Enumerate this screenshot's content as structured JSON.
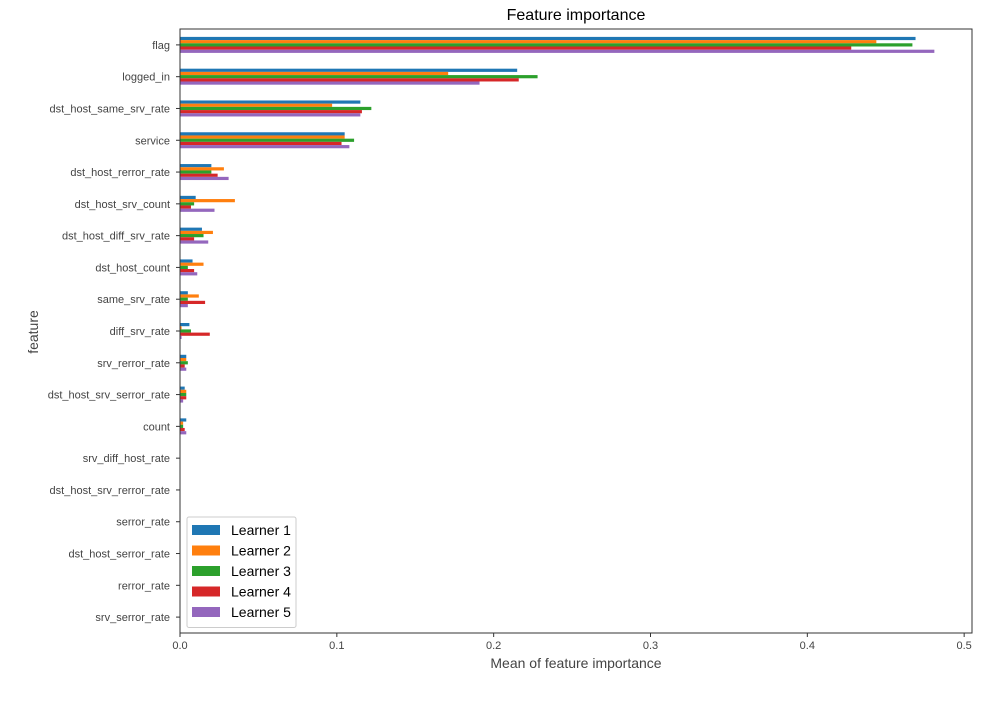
{
  "chart_data": {
    "type": "bar",
    "orientation": "horizontal",
    "title": "Feature importance",
    "xlabel": "Mean of feature importance",
    "ylabel": "feature",
    "xlim": [
      0,
      0.505
    ],
    "xticks": [
      "0.0",
      "0.1",
      "0.2",
      "0.3",
      "0.4",
      "0.5"
    ],
    "grid": false,
    "legend_position": "lower-left",
    "categories": [
      "flag",
      "logged_in",
      "dst_host_same_srv_rate",
      "service",
      "dst_host_rerror_rate",
      "dst_host_srv_count",
      "dst_host_diff_srv_rate",
      "dst_host_count",
      "same_srv_rate",
      "diff_srv_rate",
      "srv_rerror_rate",
      "dst_host_srv_serror_rate",
      "count",
      "srv_diff_host_rate",
      "dst_host_srv_rerror_rate",
      "serror_rate",
      "dst_host_serror_rate",
      "rerror_rate",
      "srv_serror_rate"
    ],
    "series": [
      {
        "name": "Learner 1",
        "color": "#1f77b4",
        "values": [
          0.469,
          0.215,
          0.115,
          0.105,
          0.02,
          0.01,
          0.014,
          0.008,
          0.005,
          0.006,
          0.004,
          0.003,
          0.004,
          0,
          0,
          0,
          0,
          0,
          0
        ]
      },
      {
        "name": "Learner 2",
        "color": "#ff7f0e",
        "values": [
          0.444,
          0.171,
          0.097,
          0.105,
          0.028,
          0.035,
          0.021,
          0.015,
          0.012,
          0.001,
          0.004,
          0.004,
          0.002,
          0,
          0,
          0,
          0,
          0,
          0
        ]
      },
      {
        "name": "Learner 3",
        "color": "#2ca02c",
        "values": [
          0.467,
          0.228,
          0.122,
          0.111,
          0.02,
          0.009,
          0.015,
          0.005,
          0.005,
          0.007,
          0.005,
          0.004,
          0.002,
          0,
          0,
          0,
          0,
          0,
          0
        ]
      },
      {
        "name": "Learner 4",
        "color": "#d62728",
        "values": [
          0.428,
          0.216,
          0.116,
          0.103,
          0.024,
          0.007,
          0.009,
          0.009,
          0.016,
          0.019,
          0.003,
          0.004,
          0.003,
          0,
          0,
          0,
          0,
          0,
          0
        ]
      },
      {
        "name": "Learner 5",
        "color": "#9467bd",
        "values": [
          0.481,
          0.191,
          0.115,
          0.108,
          0.031,
          0.022,
          0.018,
          0.011,
          0.005,
          0.001,
          0.004,
          0.002,
          0.004,
          0,
          0,
          0,
          0,
          0,
          0
        ]
      }
    ]
  }
}
